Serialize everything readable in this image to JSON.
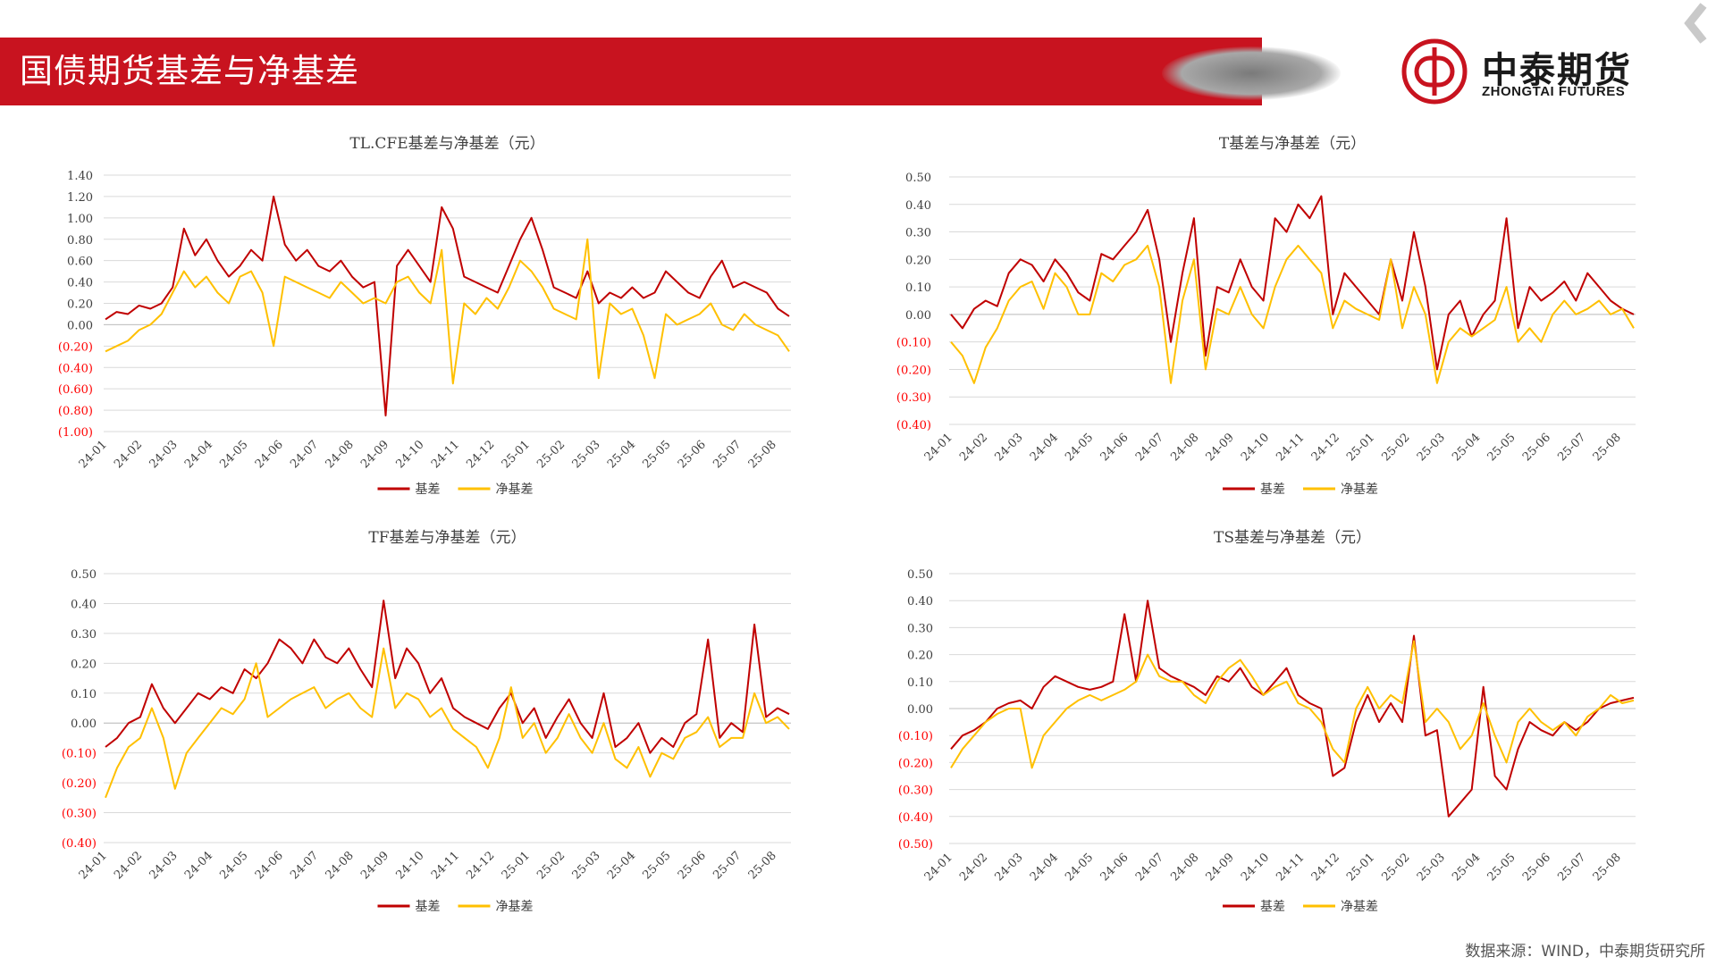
{
  "header": {
    "title": "国债期货基差与净基差",
    "logo_cn": "中泰期货",
    "logo_en": "ZHONGTAI FUTURES"
  },
  "footer": {
    "source": "数据来源：WIND，中泰期货研究所"
  },
  "colors": {
    "brand_red": "#c8131f",
    "basis": "#c00000",
    "net_basis": "#ffc000",
    "grid": "#d9d9d9"
  },
  "chart_data": [
    {
      "type": "line",
      "title": "TL.CFE基差与净基差（元）",
      "x_ticks": [
        "24-01",
        "24-02",
        "24-03",
        "24-04",
        "24-05",
        "24-06",
        "24-07",
        "24-08",
        "24-09",
        "24-10",
        "24-11",
        "24-12",
        "25-01",
        "25-02",
        "25-03",
        "25-04",
        "25-05",
        "25-06",
        "25-07",
        "25-08"
      ],
      "y_ticks": [
        "1.40",
        "1.20",
        "1.00",
        "0.80",
        "0.60",
        "0.40",
        "0.20",
        "0.00",
        "(0.20)",
        "(0.40)",
        "(0.60)",
        "(0.80)",
        "(1.00)"
      ],
      "ylim": [
        -1.0,
        1.4
      ],
      "legend": "bottom",
      "series": [
        {
          "name": "基差",
          "values": [
            0.05,
            0.12,
            0.1,
            0.18,
            0.15,
            0.2,
            0.35,
            0.9,
            0.65,
            0.8,
            0.6,
            0.45,
            0.55,
            0.7,
            0.6,
            1.2,
            0.75,
            0.6,
            0.7,
            0.55,
            0.5,
            0.6,
            0.45,
            0.35,
            0.4,
            -0.85,
            0.55,
            0.7,
            0.55,
            0.4,
            1.1,
            0.9,
            0.45,
            0.4,
            0.35,
            0.3,
            0.55,
            0.8,
            1.0,
            0.7,
            0.35,
            0.3,
            0.25,
            0.5,
            0.2,
            0.3,
            0.25,
            0.35,
            0.25,
            0.3,
            0.5,
            0.4,
            0.3,
            0.25,
            0.45,
            0.6,
            0.35,
            0.4,
            0.35,
            0.3,
            0.15,
            0.08
          ]
        },
        {
          "name": "净基差",
          "values": [
            -0.25,
            -0.2,
            -0.15,
            -0.05,
            0.0,
            0.1,
            0.3,
            0.5,
            0.35,
            0.45,
            0.3,
            0.2,
            0.45,
            0.5,
            0.3,
            -0.2,
            0.45,
            0.4,
            0.35,
            0.3,
            0.25,
            0.4,
            0.3,
            0.2,
            0.25,
            0.2,
            0.4,
            0.45,
            0.3,
            0.2,
            0.7,
            -0.55,
            0.2,
            0.1,
            0.25,
            0.15,
            0.35,
            0.6,
            0.5,
            0.35,
            0.15,
            0.1,
            0.05,
            0.8,
            -0.5,
            0.2,
            0.1,
            0.15,
            -0.1,
            -0.5,
            0.1,
            0.0,
            0.05,
            0.1,
            0.2,
            0.0,
            -0.05,
            0.1,
            0.0,
            -0.05,
            -0.1,
            -0.25
          ]
        }
      ]
    },
    {
      "type": "line",
      "title": "T基差与净基差（元）",
      "x_ticks": [
        "24-01",
        "24-02",
        "24-03",
        "24-04",
        "24-05",
        "24-06",
        "24-07",
        "24-08",
        "24-09",
        "24-10",
        "24-11",
        "24-12",
        "25-01",
        "25-02",
        "25-03",
        "25-04",
        "25-05",
        "25-06",
        "25-07",
        "25-08"
      ],
      "y_ticks": [
        "0.50",
        "0.40",
        "0.30",
        "0.20",
        "0.10",
        "0.00",
        "(0.10)",
        "(0.20)",
        "(0.30)",
        "(0.40)"
      ],
      "ylim": [
        -0.4,
        0.5
      ],
      "legend": "bottom",
      "series": [
        {
          "name": "基差",
          "values": [
            0.0,
            -0.05,
            0.02,
            0.05,
            0.03,
            0.15,
            0.2,
            0.18,
            0.12,
            0.2,
            0.15,
            0.08,
            0.05,
            0.22,
            0.2,
            0.25,
            0.3,
            0.38,
            0.2,
            -0.1,
            0.15,
            0.35,
            -0.15,
            0.1,
            0.08,
            0.2,
            0.1,
            0.05,
            0.35,
            0.3,
            0.4,
            0.35,
            0.43,
            0.0,
            0.15,
            0.1,
            0.05,
            0.0,
            0.2,
            0.05,
            0.3,
            0.1,
            -0.2,
            0.0,
            0.05,
            -0.08,
            0.0,
            0.05,
            0.35,
            -0.05,
            0.1,
            0.05,
            0.08,
            0.12,
            0.05,
            0.15,
            0.1,
            0.05,
            0.02,
            0.0
          ]
        },
        {
          "name": "净基差",
          "values": [
            -0.1,
            -0.15,
            -0.25,
            -0.12,
            -0.05,
            0.05,
            0.1,
            0.12,
            0.02,
            0.15,
            0.1,
            0.0,
            0.0,
            0.15,
            0.12,
            0.18,
            0.2,
            0.25,
            0.1,
            -0.25,
            0.05,
            0.2,
            -0.2,
            0.02,
            0.0,
            0.1,
            0.0,
            -0.05,
            0.1,
            0.2,
            0.25,
            0.2,
            0.15,
            -0.05,
            0.05,
            0.02,
            0.0,
            -0.02,
            0.2,
            -0.05,
            0.1,
            0.0,
            -0.25,
            -0.1,
            -0.05,
            -0.08,
            -0.05,
            -0.02,
            0.1,
            -0.1,
            -0.05,
            -0.1,
            0.0,
            0.05,
            0.0,
            0.02,
            0.05,
            0.0,
            0.02,
            -0.05
          ]
        }
      ]
    },
    {
      "type": "line",
      "title": "TF基差与净基差（元）",
      "x_ticks": [
        "24-01",
        "24-02",
        "24-03",
        "24-04",
        "24-05",
        "24-06",
        "24-07",
        "24-08",
        "24-09",
        "24-10",
        "24-11",
        "24-12",
        "25-01",
        "25-02",
        "25-03",
        "25-04",
        "25-05",
        "25-06",
        "25-07",
        "25-08"
      ],
      "y_ticks": [
        "0.50",
        "0.40",
        "0.30",
        "0.20",
        "0.10",
        "0.00",
        "(0.10)",
        "(0.20)",
        "(0.30)",
        "(0.40)"
      ],
      "ylim": [
        -0.4,
        0.5
      ],
      "legend": "bottom",
      "series": [
        {
          "name": "基差",
          "values": [
            -0.08,
            -0.05,
            0.0,
            0.02,
            0.13,
            0.05,
            0.0,
            0.05,
            0.1,
            0.08,
            0.12,
            0.1,
            0.18,
            0.15,
            0.2,
            0.28,
            0.25,
            0.2,
            0.28,
            0.22,
            0.2,
            0.25,
            0.18,
            0.12,
            0.41,
            0.15,
            0.25,
            0.2,
            0.1,
            0.15,
            0.05,
            0.02,
            0.0,
            -0.02,
            0.05,
            0.1,
            0.0,
            0.05,
            -0.05,
            0.02,
            0.08,
            0.0,
            -0.05,
            0.1,
            -0.08,
            -0.05,
            0.0,
            -0.1,
            -0.05,
            -0.08,
            0.0,
            0.03,
            0.28,
            -0.05,
            0.0,
            -0.03,
            0.33,
            0.02,
            0.05,
            0.03
          ]
        },
        {
          "name": "净基差",
          "values": [
            -0.25,
            -0.15,
            -0.08,
            -0.05,
            0.05,
            -0.05,
            -0.22,
            -0.1,
            -0.05,
            0.0,
            0.05,
            0.03,
            0.08,
            0.2,
            0.02,
            0.05,
            0.08,
            0.1,
            0.12,
            0.05,
            0.08,
            0.1,
            0.05,
            0.02,
            0.25,
            0.05,
            0.1,
            0.08,
            0.02,
            0.05,
            -0.02,
            -0.05,
            -0.08,
            -0.15,
            -0.05,
            0.12,
            -0.05,
            0.0,
            -0.1,
            -0.05,
            0.03,
            -0.05,
            -0.1,
            0.0,
            -0.12,
            -0.15,
            -0.08,
            -0.18,
            -0.1,
            -0.12,
            -0.05,
            -0.03,
            0.02,
            -0.08,
            -0.05,
            -0.05,
            0.1,
            0.0,
            0.02,
            -0.02
          ]
        }
      ]
    },
    {
      "type": "line",
      "title": "TS基差与净基差（元）",
      "x_ticks": [
        "24-01",
        "24-02",
        "24-03",
        "24-04",
        "24-05",
        "24-06",
        "24-07",
        "24-08",
        "24-09",
        "24-10",
        "24-11",
        "24-12",
        "25-01",
        "25-02",
        "25-03",
        "25-04",
        "25-05",
        "25-06",
        "25-07",
        "25-08"
      ],
      "y_ticks": [
        "0.50",
        "0.40",
        "0.30",
        "0.20",
        "0.10",
        "0.00",
        "(0.10)",
        "(0.20)",
        "(0.30)",
        "(0.40)",
        "(0.50)"
      ],
      "ylim": [
        -0.5,
        0.5
      ],
      "legend": "bottom",
      "series": [
        {
          "name": "基差",
          "values": [
            -0.15,
            -0.1,
            -0.08,
            -0.05,
            0.0,
            0.02,
            0.03,
            0.0,
            0.08,
            0.12,
            0.1,
            0.08,
            0.07,
            0.08,
            0.1,
            0.35,
            0.1,
            0.4,
            0.15,
            0.12,
            0.1,
            0.08,
            0.05,
            0.12,
            0.1,
            0.15,
            0.08,
            0.05,
            0.1,
            0.15,
            0.05,
            0.02,
            0.0,
            -0.25,
            -0.22,
            -0.05,
            0.05,
            -0.05,
            0.02,
            -0.05,
            0.27,
            -0.1,
            -0.08,
            -0.4,
            -0.35,
            -0.3,
            0.08,
            -0.25,
            -0.3,
            -0.15,
            -0.05,
            -0.08,
            -0.1,
            -0.05,
            -0.08,
            -0.05,
            0.0,
            0.02,
            0.03,
            0.04
          ]
        },
        {
          "name": "净基差",
          "values": [
            -0.22,
            -0.15,
            -0.1,
            -0.05,
            -0.02,
            0.0,
            0.0,
            -0.22,
            -0.1,
            -0.05,
            0.0,
            0.03,
            0.05,
            0.03,
            0.05,
            0.07,
            0.1,
            0.2,
            0.12,
            0.1,
            0.1,
            0.05,
            0.02,
            0.1,
            0.15,
            0.18,
            0.12,
            0.05,
            0.08,
            0.1,
            0.02,
            0.0,
            -0.05,
            -0.15,
            -0.2,
            0.0,
            0.08,
            0.0,
            0.05,
            0.02,
            0.25,
            -0.05,
            0.0,
            -0.05,
            -0.15,
            -0.1,
            0.02,
            -0.1,
            -0.2,
            -0.05,
            0.0,
            -0.05,
            -0.08,
            -0.05,
            -0.1,
            -0.03,
            0.0,
            0.05,
            0.02,
            0.03
          ]
        }
      ]
    }
  ]
}
